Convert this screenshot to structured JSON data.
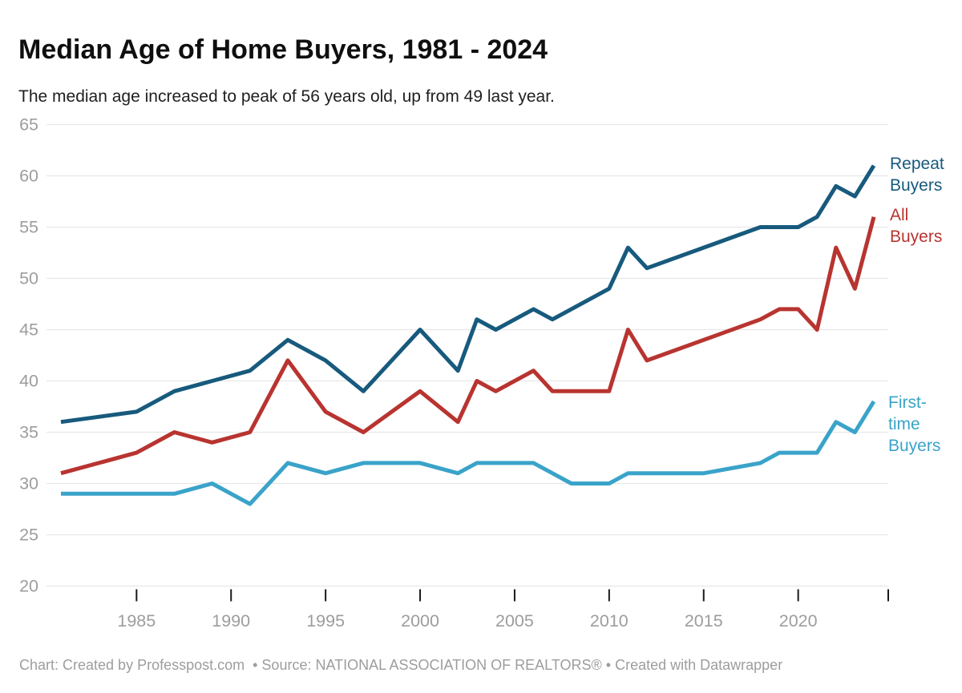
{
  "header": {
    "title": "Median Age of Home Buyers, 1981 - 2024",
    "subtitle": "The median age increased to peak of 56 years old, up from 49 last year."
  },
  "legend": {
    "repeat": "Repeat\nBuyers",
    "all": "All\nBuyers",
    "first": "First-\ntime\nBuyers"
  },
  "footer": {
    "text": "Chart: Created by Professpost.com  • Source: NATIONAL ASSOCIATION OF REALTORS® • Created with Datawrapper"
  },
  "colors": {
    "grid": "#e7e7e7",
    "axis_text": "#9d9d9d",
    "tick": "#1a1a1a",
    "background": "#ffffff",
    "repeat_buyers": "#175a7d",
    "all_buyers": "#b83430",
    "first_time_buyers": "#3aa3c9"
  },
  "chart_data": {
    "type": "line",
    "title": "Median Age of Home Buyers, 1981 - 2024",
    "subtitle": "The median age increased to peak of 56 years old, up from 49 last year.",
    "grid": true,
    "legend_position": "line-end labels at right",
    "x_axis": {
      "range": [
        1981,
        2024
      ],
      "tick_labels": [
        "1985",
        "1990",
        "1995",
        "2000",
        "2005",
        "2010",
        "2015",
        "2020"
      ],
      "tick_years": [
        1985,
        1990,
        1995,
        2000,
        2005,
        2010,
        2015,
        2020
      ],
      "unlabeled_edge_tick": true
    },
    "y_axis": {
      "range": [
        20,
        65
      ],
      "ticks": [
        65,
        60,
        55,
        50,
        45,
        40,
        35,
        30,
        25,
        20
      ]
    },
    "series": [
      {
        "id": "repeat-buyers",
        "name": "Repeat Buyers",
        "color": "#175a7d",
        "points": [
          [
            1981,
            36
          ],
          [
            1985,
            37
          ],
          [
            1987,
            39
          ],
          [
            1989,
            40
          ],
          [
            1991,
            41
          ],
          [
            1993,
            44
          ],
          [
            1995,
            42
          ],
          [
            1997,
            39
          ],
          [
            2000,
            45
          ],
          [
            2002,
            41
          ],
          [
            2003,
            46
          ],
          [
            2004,
            45
          ],
          [
            2006,
            47
          ],
          [
            2007,
            46
          ],
          [
            2010,
            49
          ],
          [
            2011,
            53
          ],
          [
            2012,
            51
          ],
          [
            2018,
            55
          ],
          [
            2020,
            55
          ],
          [
            2021,
            56
          ],
          [
            2022,
            59
          ],
          [
            2023,
            58
          ],
          [
            2024,
            61
          ]
        ]
      },
      {
        "id": "all-buyers",
        "name": "All Buyers",
        "color": "#b83430",
        "points": [
          [
            1981,
            31
          ],
          [
            1985,
            33
          ],
          [
            1987,
            35
          ],
          [
            1989,
            34
          ],
          [
            1991,
            35
          ],
          [
            1993,
            42
          ],
          [
            1995,
            37
          ],
          [
            1997,
            35
          ],
          [
            2000,
            39
          ],
          [
            2002,
            36
          ],
          [
            2003,
            40
          ],
          [
            2004,
            39
          ],
          [
            2006,
            41
          ],
          [
            2007,
            39
          ],
          [
            2010,
            39
          ],
          [
            2011,
            45
          ],
          [
            2012,
            42
          ],
          [
            2018,
            46
          ],
          [
            2019,
            47
          ],
          [
            2020,
            47
          ],
          [
            2021,
            45
          ],
          [
            2022,
            53
          ],
          [
            2023,
            49
          ],
          [
            2024,
            56
          ]
        ]
      },
      {
        "id": "first-time-buyers",
        "name": "First-time Buyers",
        "color": "#3aa3c9",
        "points": [
          [
            1981,
            29
          ],
          [
            1987,
            29
          ],
          [
            1989,
            30
          ],
          [
            1991,
            28
          ],
          [
            1993,
            32
          ],
          [
            1995,
            31
          ],
          [
            1997,
            32
          ],
          [
            2000,
            32
          ],
          [
            2002,
            31
          ],
          [
            2003,
            32
          ],
          [
            2006,
            32
          ],
          [
            2007,
            31
          ],
          [
            2008,
            30
          ],
          [
            2010,
            30
          ],
          [
            2011,
            31
          ],
          [
            2015,
            31
          ],
          [
            2018,
            32
          ],
          [
            2019,
            33
          ],
          [
            2021,
            33
          ],
          [
            2022,
            36
          ],
          [
            2023,
            35
          ],
          [
            2024,
            38
          ]
        ]
      }
    ]
  }
}
